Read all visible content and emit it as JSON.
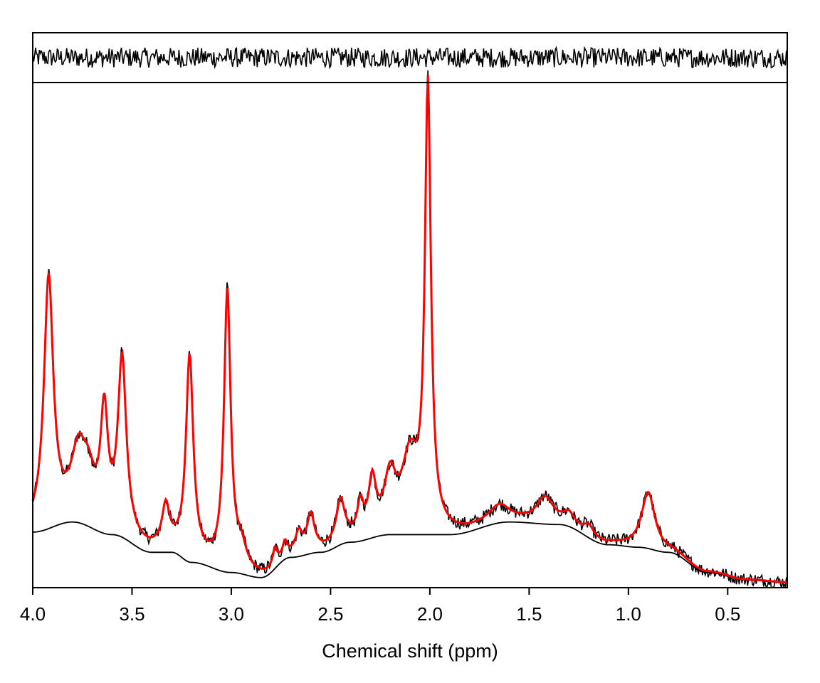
{
  "chart_data": {
    "type": "line",
    "title": "",
    "xlabel": "Chemical shift (ppm)",
    "ylabel": "",
    "x_reversed": true,
    "xlim": [
      4.0,
      0.2
    ],
    "x_ticks": [
      4.0,
      3.5,
      3.0,
      2.5,
      2.0,
      1.5,
      1.0,
      0.5
    ],
    "x_tick_labels": [
      "4.0",
      "3.5",
      "3.0",
      "2.5",
      "2.0",
      "1.5",
      "1.0",
      "0.5"
    ],
    "ylim": [
      0,
      100
    ],
    "y_ticks_shown": false,
    "grid": false,
    "legend": "none",
    "panels": [
      "residual (top)",
      "spectrum fit (bottom)"
    ],
    "series": [
      {
        "role": "fit",
        "color": "#ff0000",
        "peaks": [
          {
            "center": 3.92,
            "height": 49,
            "width": 0.028
          },
          {
            "center": 3.77,
            "height": 12,
            "width": 0.045
          },
          {
            "center": 3.72,
            "height": 7,
            "width": 0.04
          },
          {
            "center": 3.64,
            "height": 22,
            "width": 0.022
          },
          {
            "center": 3.55,
            "height": 34,
            "width": 0.025
          },
          {
            "center": 3.33,
            "height": 8,
            "width": 0.022
          },
          {
            "center": 3.21,
            "height": 40,
            "width": 0.022
          },
          {
            "center": 3.02,
            "height": 55,
            "width": 0.02
          },
          {
            "center": 2.95,
            "height": 4,
            "width": 0.03
          },
          {
            "center": 2.78,
            "height": 3,
            "width": 0.012
          },
          {
            "center": 2.73,
            "height": 2.5,
            "width": 0.012
          },
          {
            "center": 2.66,
            "height": 4,
            "width": 0.02
          },
          {
            "center": 2.6,
            "height": 7,
            "width": 0.022
          },
          {
            "center": 2.45,
            "height": 8,
            "width": 0.025
          },
          {
            "center": 2.35,
            "height": 6,
            "width": 0.018
          },
          {
            "center": 2.29,
            "height": 10,
            "width": 0.022
          },
          {
            "center": 2.2,
            "height": 10,
            "width": 0.035
          },
          {
            "center": 2.1,
            "height": 14,
            "width": 0.05
          },
          {
            "center": 2.01,
            "height": 87,
            "width": 0.018
          },
          {
            "center": 1.65,
            "height": 3,
            "width": 0.06
          },
          {
            "center": 1.42,
            "height": 5,
            "width": 0.05
          },
          {
            "center": 1.3,
            "height": 2,
            "width": 0.03
          },
          {
            "center": 1.2,
            "height": 2,
            "width": 0.03
          },
          {
            "center": 0.9,
            "height": 11,
            "width": 0.04
          }
        ]
      },
      {
        "role": "baseline",
        "color": "#000000",
        "x": [
          4.0,
          3.8,
          3.6,
          3.4,
          3.3,
          3.2,
          3.0,
          2.85,
          2.7,
          2.55,
          2.4,
          2.2,
          1.9,
          1.6,
          1.35,
          1.1,
          0.95,
          0.8,
          0.6,
          0.4,
          0.2
        ],
        "y": [
          11,
          13,
          10.5,
          7,
          7,
          5,
          3,
          2,
          6,
          7,
          9,
          10.5,
          10.5,
          13,
          12.5,
          8.5,
          8,
          7,
          3,
          1.5,
          1
        ]
      },
      {
        "role": "spectrum",
        "color": "#000000",
        "noise_amplitude": 1.3
      },
      {
        "role": "residual",
        "color": "#000000",
        "noise_amplitude": 1.0
      }
    ]
  }
}
